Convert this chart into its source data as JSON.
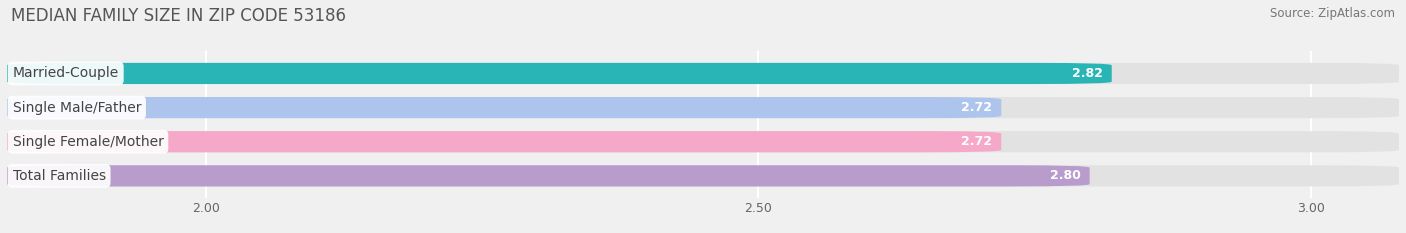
{
  "title": "MEDIAN FAMILY SIZE IN ZIP CODE 53186",
  "source": "Source: ZipAtlas.com",
  "categories": [
    "Married-Couple",
    "Single Male/Father",
    "Single Female/Mother",
    "Total Families"
  ],
  "values": [
    2.82,
    2.72,
    2.72,
    2.8
  ],
  "bar_colors": [
    "#29b5b5",
    "#adc4ec",
    "#f5a8c8",
    "#b89ccc"
  ],
  "xmin": 1.82,
  "xmax": 3.08,
  "xticks": [
    2.0,
    2.5,
    3.0
  ],
  "bar_height": 0.62,
  "title_fontsize": 12,
  "source_fontsize": 8.5,
  "label_fontsize": 10,
  "value_fontsize": 9,
  "tick_fontsize": 9,
  "background_color": "#f0f0f0",
  "track_color": "#e2e2e2",
  "grid_color": "#ffffff"
}
